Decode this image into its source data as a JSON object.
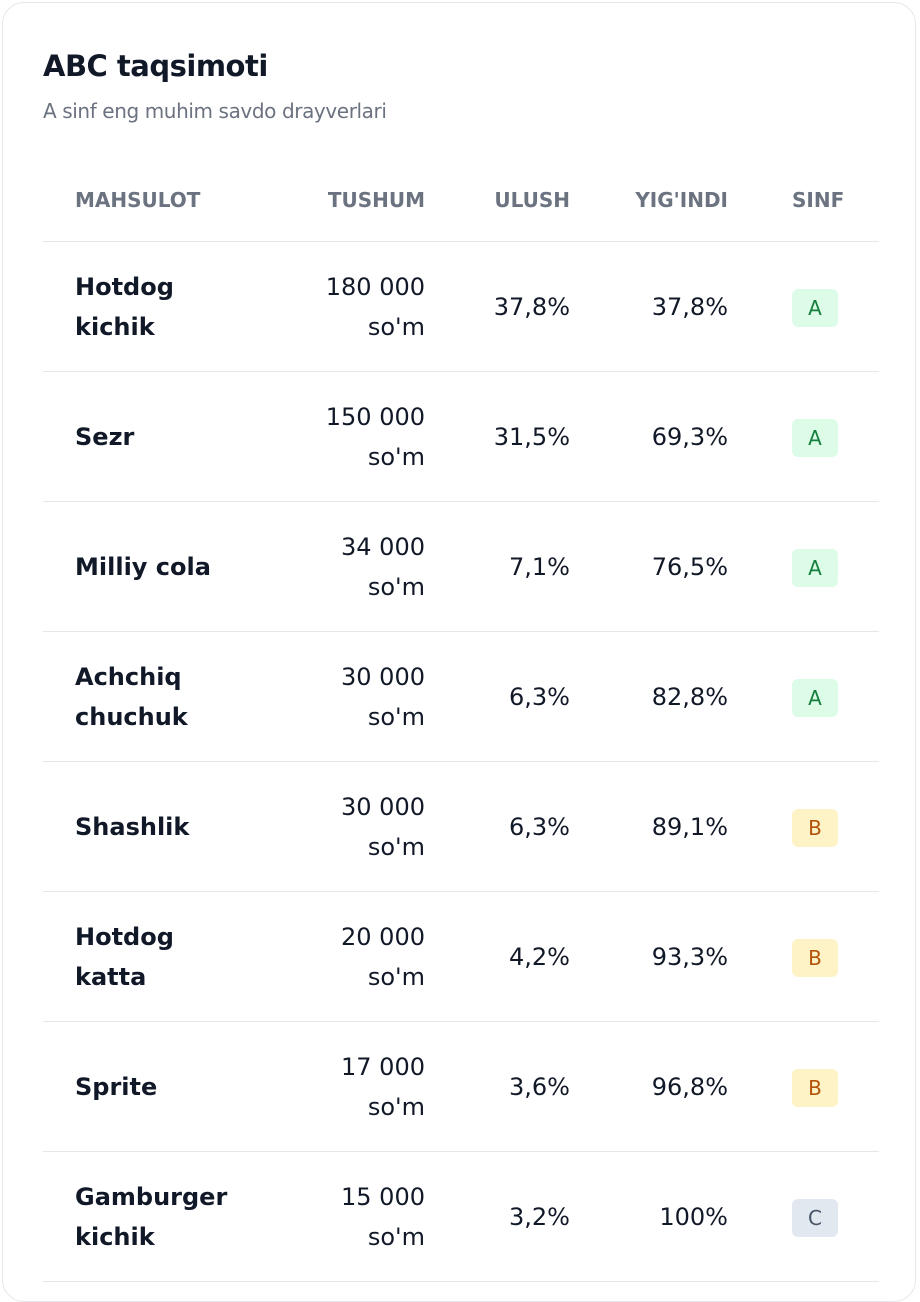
{
  "header": {
    "title": "ABC taqsimoti",
    "subtitle": "A sinf eng muhim savdo drayverlari"
  },
  "table": {
    "columns": [
      "MAHSULOT",
      "TUSHUM",
      "ULUSH",
      "YIG'INDI",
      "SINF"
    ],
    "rows": [
      [
        "Hotdog kichik",
        "180 000 so'm",
        "37,8%",
        "37,8%",
        "A"
      ],
      [
        "Sezr",
        "150 000 so'm",
        "31,5%",
        "69,3%",
        "A"
      ],
      [
        "Milliy cola",
        "34 000 so'm",
        "7,1%",
        "76,5%",
        "A"
      ],
      [
        "Achchiq chuchuk",
        "30 000 so'm",
        "6,3%",
        "82,8%",
        "A"
      ],
      [
        "Shashlik",
        "30 000 so'm",
        "6,3%",
        "89,1%",
        "B"
      ],
      [
        "Hotdog katta",
        "20 000 so'm",
        "4,2%",
        "93,3%",
        "B"
      ],
      [
        "Sprite",
        "17 000 so'm",
        "3,6%",
        "96,8%",
        "B"
      ],
      [
        "Gamburger kichik",
        "15 000 so'm",
        "3,2%",
        "100%",
        "C"
      ]
    ]
  }
}
